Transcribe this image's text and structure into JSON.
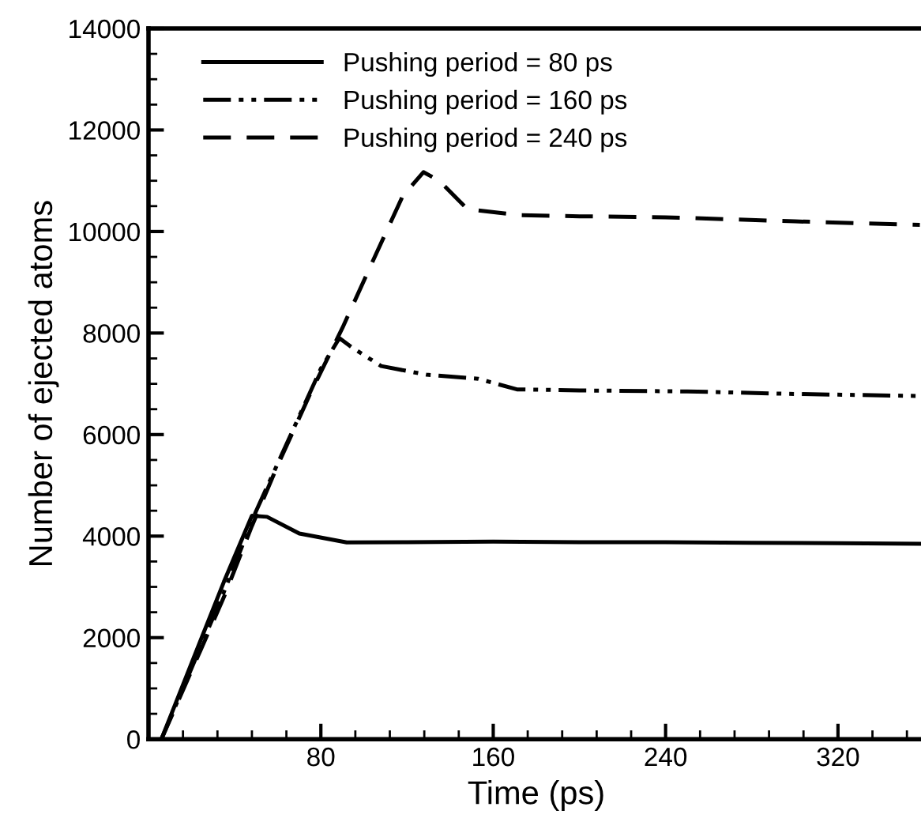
{
  "chart_data": {
    "type": "line",
    "xlabel": "Time (ps)",
    "ylabel": "Number of ejected atoms",
    "xlim": [
      0,
      360
    ],
    "ylim": [
      0,
      14000
    ],
    "xticks": [
      {
        "value": 16,
        "label": null
      },
      {
        "value": 32,
        "label": null
      },
      {
        "value": 48,
        "label": null
      },
      {
        "value": 64,
        "label": null
      },
      80,
      {
        "value": 96,
        "label": null
      },
      {
        "value": 112,
        "label": null
      },
      {
        "value": 128,
        "label": null
      },
      {
        "value": 144,
        "label": null
      },
      160,
      {
        "value": 176,
        "label": null
      },
      {
        "value": 192,
        "label": null
      },
      {
        "value": 208,
        "label": null
      },
      {
        "value": 224,
        "label": null
      },
      240,
      {
        "value": 256,
        "label": null
      },
      {
        "value": 272,
        "label": null
      },
      {
        "value": 288,
        "label": null
      },
      {
        "value": 304,
        "label": null
      },
      320,
      {
        "value": 336,
        "label": null
      },
      {
        "value": 352,
        "label": null
      }
    ],
    "yticks": [
      0,
      {
        "value": 500,
        "label": null
      },
      {
        "value": 1000,
        "label": null
      },
      {
        "value": 1500,
        "label": null
      },
      2000,
      {
        "value": 2500,
        "label": null
      },
      {
        "value": 3000,
        "label": null
      },
      {
        "value": 3500,
        "label": null
      },
      4000,
      {
        "value": 4500,
        "label": null
      },
      {
        "value": 5000,
        "label": null
      },
      {
        "value": 5500,
        "label": null
      },
      6000,
      {
        "value": 6500,
        "label": null
      },
      {
        "value": 7000,
        "label": null
      },
      {
        "value": 7500,
        "label": null
      },
      8000,
      {
        "value": 8500,
        "label": null
      },
      {
        "value": 9000,
        "label": null
      },
      {
        "value": 9500,
        "label": null
      },
      10000,
      {
        "value": 10500,
        "label": null
      },
      {
        "value": 11000,
        "label": null
      },
      {
        "value": 11500,
        "label": null
      },
      12000,
      {
        "value": 12500,
        "label": null
      },
      {
        "value": 13000,
        "label": null
      },
      {
        "value": 13500,
        "label": null
      },
      14000
    ],
    "grid": false,
    "legend": "top left",
    "series": [
      {
        "name": "Pushing period = 80 ps",
        "color": "#000000",
        "line_style": "solid",
        "x": [
          6,
          20,
          35,
          48,
          55,
          70,
          92,
          120,
          160,
          200,
          240,
          280,
          320,
          358
        ],
        "values": [
          0,
          1500,
          3100,
          4400,
          4380,
          4050,
          3875,
          3880,
          3890,
          3880,
          3880,
          3870,
          3860,
          3850
        ]
      },
      {
        "name": "Pushing period = 160 ps",
        "color": "#000000",
        "line_style": "dashdotdot",
        "x": [
          6,
          20,
          35,
          50,
          65,
          80,
          88.6,
          95,
          108,
          129,
          153,
          171,
          200,
          250,
          300,
          358
        ],
        "values": [
          0,
          1400,
          2900,
          4500,
          5900,
          7300,
          7900,
          7700,
          7350,
          7180,
          7100,
          6890,
          6870,
          6850,
          6800,
          6760
        ]
      },
      {
        "name": "Pushing period = 240 ps",
        "color": "#000000",
        "line_style": "dashed",
        "x": [
          6,
          20,
          35,
          48,
          60,
          75,
          90,
          105,
          118,
          127.6,
          135,
          148,
          173,
          200,
          240,
          300,
          358
        ],
        "values": [
          0,
          1350,
          2800,
          4200,
          5400,
          6800,
          8100,
          9500,
          10700,
          11170,
          11000,
          10440,
          10320,
          10300,
          10280,
          10200,
          10130
        ]
      }
    ]
  }
}
